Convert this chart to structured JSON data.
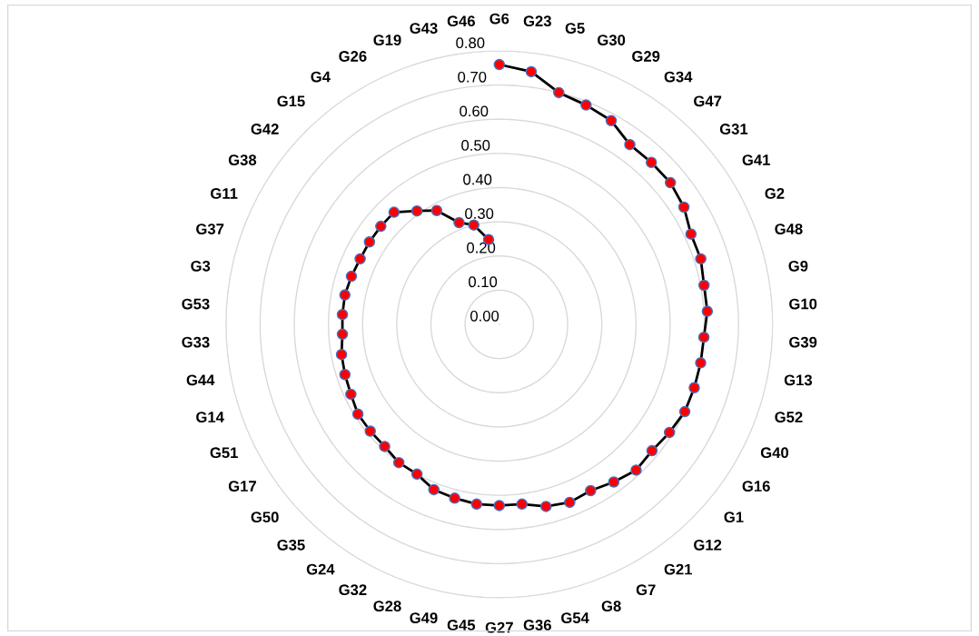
{
  "chart_data": {
    "type": "radar",
    "categories": [
      "G6",
      "G23",
      "G5",
      "G30",
      "G29",
      "G34",
      "G47",
      "G31",
      "G41",
      "G2",
      "G48",
      "G9",
      "G10",
      "G39",
      "G13",
      "G52",
      "G40",
      "G16",
      "G1",
      "G12",
      "G21",
      "G7",
      "G8",
      "G54",
      "G36",
      "G27",
      "G45",
      "G49",
      "G28",
      "G32",
      "G24",
      "G35",
      "G50",
      "G17",
      "G51",
      "G14",
      "G44",
      "G33",
      "G53",
      "G3",
      "G37",
      "G11",
      "G38",
      "G42",
      "G15",
      "G4",
      "G26",
      "G19",
      "G43",
      "G46"
    ],
    "series": [
      {
        "color": "#000000",
        "colors": [
          "#ff0000",
          "#ff0000",
          "#ff0000",
          "#ff0000",
          "#ff0000",
          "#ff0000",
          "#ff0000",
          "#ff0000",
          "#ff0000",
          "#ff0000",
          "#ff0000",
          "#ff0000",
          "#ff0000",
          "#ff0000",
          "#ff0000",
          "#ff0000",
          "#ff0000",
          "#ff0000",
          "#ff0000",
          "#ff0000",
          "#ff0000",
          "#ff0000",
          "#ff0000",
          "#ff0000",
          "#ff0000",
          "#ff0000",
          "#ff0000",
          "#ff0000",
          "#ff0000",
          "#ff0000",
          "#ff0000",
          "#ff0000",
          "#ff0000",
          "#ff0000",
          "#ff0000",
          "#ff0000",
          "#ff0000",
          "#ff0000",
          "#ff0000",
          "#ff0000",
          "#ff0000",
          "#ff0000",
          "#ff0000",
          "#ff0000",
          "#ff0000",
          "#ff0000",
          "#ff0000",
          "#ff0000",
          "#ff0000",
          "#ff0000"
        ],
        "values": [
          0.76,
          0.745,
          0.7,
          0.69,
          0.68,
          0.65,
          0.65,
          0.65,
          0.64,
          0.62,
          0.62,
          0.61,
          0.61,
          0.6,
          0.6,
          0.6,
          0.6,
          0.59,
          0.58,
          0.585,
          0.57,
          0.555,
          0.56,
          0.55,
          0.53,
          0.53,
          0.53,
          0.525,
          0.52,
          0.5,
          0.5,
          0.49,
          0.49,
          0.49,
          0.48,
          0.475,
          0.47,
          0.46,
          0.46,
          0.46,
          0.455,
          0.45,
          0.45,
          0.45,
          0.45,
          0.41,
          0.38,
          0.32,
          0.3,
          0.25
        ]
      }
    ],
    "ylim": [
      0,
      0.8
    ],
    "yticks": [
      {
        "value": 0,
        "label": "0.00"
      },
      {
        "value": 0.1,
        "label": "0.10"
      },
      {
        "value": 0.2,
        "label": "0.20"
      },
      {
        "value": 0.3,
        "label": "0.30"
      },
      {
        "value": 0.4,
        "label": "0.40"
      },
      {
        "value": 0.5,
        "label": "0.50"
      },
      {
        "value": 0.6,
        "label": "0.60"
      },
      {
        "value": 0.7,
        "label": "0.70"
      },
      {
        "value": 0.8,
        "label": "0.80"
      }
    ],
    "grid": true,
    "marker": "circle",
    "line_style": "solid",
    "legend": false
  }
}
